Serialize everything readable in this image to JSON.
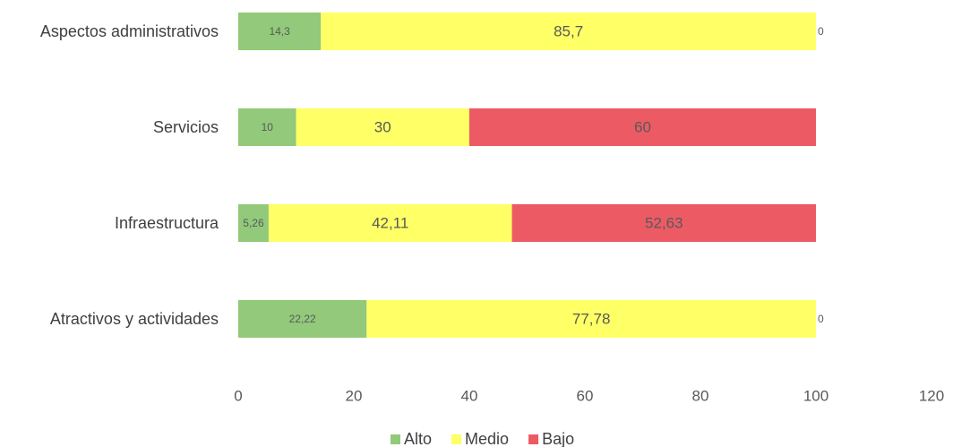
{
  "chart_data": {
    "type": "bar",
    "orientation": "horizontal",
    "stacked": true,
    "categories": [
      "Aspectos administrativos",
      "Servicios",
      "Infraestructura",
      "Atractivos y actividades"
    ],
    "series": [
      {
        "name": "Alto",
        "color": "#92c97a",
        "values": [
          14.3,
          10,
          5.26,
          22.22
        ],
        "labels": [
          "14,3",
          "10",
          "5,26",
          "22,22"
        ]
      },
      {
        "name": "Medio",
        "color": "#ffff66",
        "values": [
          85.7,
          30,
          42.11,
          77.78
        ],
        "labels": [
          "85,7",
          "30",
          "42,11",
          "77,78"
        ]
      },
      {
        "name": "Bajo",
        "color": "#ec5b64",
        "values": [
          0,
          60,
          52.63,
          0
        ],
        "labels": [
          "0",
          "60",
          "52,63",
          "0"
        ]
      }
    ],
    "xlim": [
      0,
      120
    ],
    "xticks": [
      "0",
      "20",
      "40",
      "60",
      "80",
      "100",
      "120"
    ],
    "grid": false,
    "legend": "bottom"
  }
}
